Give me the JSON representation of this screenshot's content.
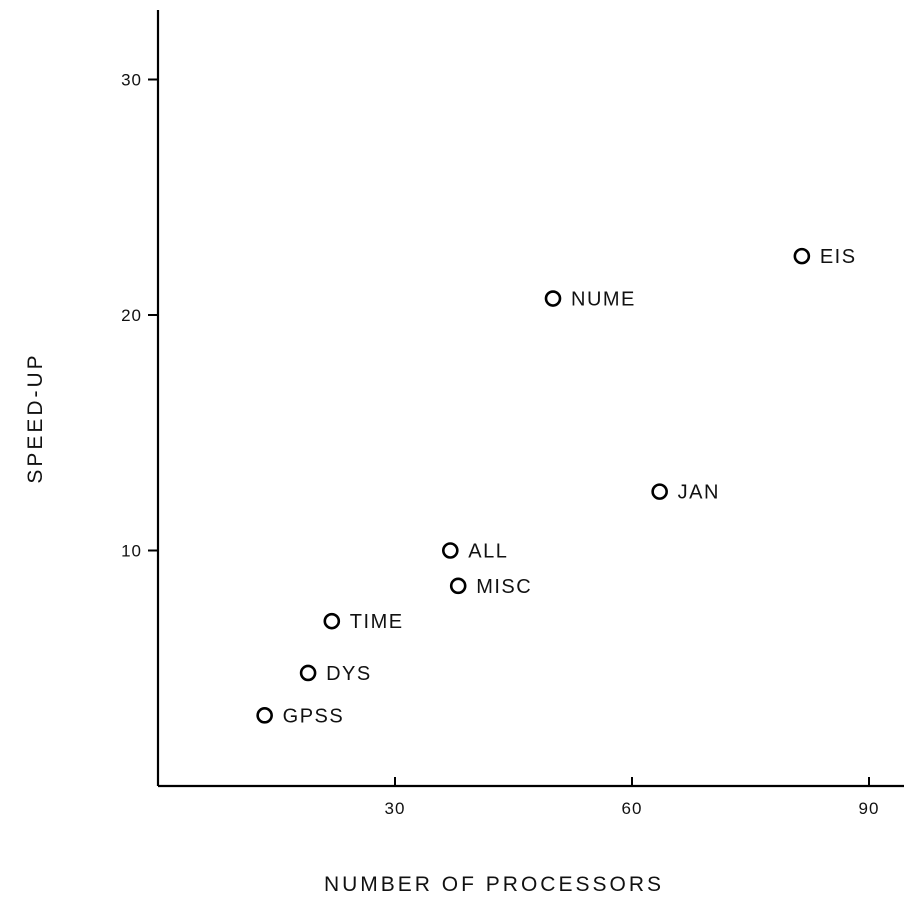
{
  "chart_data": {
    "type": "scatter",
    "title": "",
    "xlabel": "NUMBER OF PROCESSORS",
    "ylabel": "SPEED-UP",
    "xlim": [
      0,
      96
    ],
    "ylim": [
      0,
      33
    ],
    "xticks": [
      30,
      60,
      90
    ],
    "yticks": [
      10,
      20,
      30
    ],
    "grid": false,
    "marker": "open-circle",
    "points": [
      {
        "label": "GPSS",
        "x": 13.5,
        "y": 3.0
      },
      {
        "label": "DYS",
        "x": 19.0,
        "y": 4.8
      },
      {
        "label": "TIME",
        "x": 22.0,
        "y": 7.0
      },
      {
        "label": "ALL",
        "x": 37.0,
        "y": 10.0
      },
      {
        "label": "MISC",
        "x": 38.0,
        "y": 8.5
      },
      {
        "label": "NUME",
        "x": 50.0,
        "y": 20.7
      },
      {
        "label": "JAN",
        "x": 63.5,
        "y": 12.5
      },
      {
        "label": "EIS",
        "x": 81.5,
        "y": 22.5
      }
    ]
  }
}
